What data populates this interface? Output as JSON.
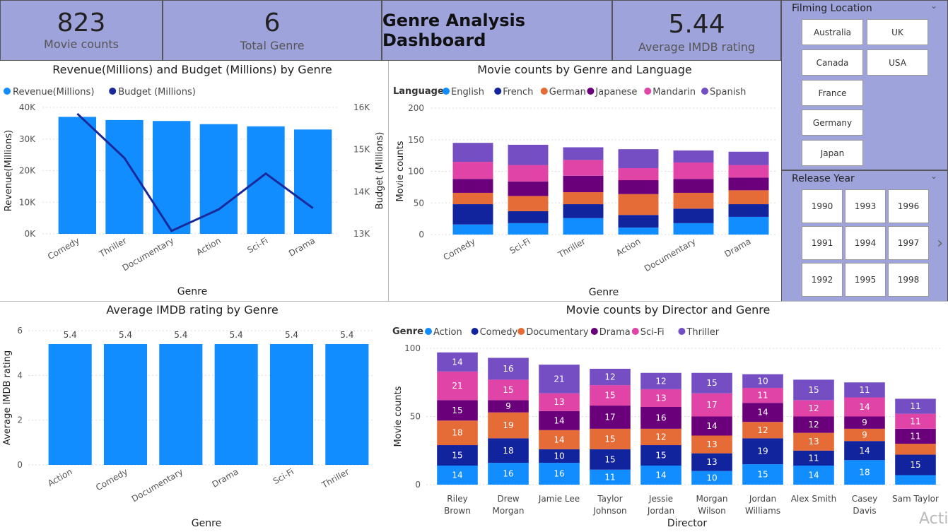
{
  "kpis": {
    "movie_counts": {
      "value": "823",
      "label": "Movie counts"
    },
    "total_genre": {
      "value": "6",
      "label": "Total Genre"
    },
    "dashboard_title": "Genre Analysis Dashboard",
    "avg_imdb": {
      "value": "5.44",
      "label": "Average IMDB rating"
    }
  },
  "slicers": {
    "filming_location": {
      "title": "Filming Location",
      "items": [
        "Australia",
        "UK",
        "Canada",
        "USA",
        "France",
        "Germany",
        "Japan"
      ]
    },
    "release_year": {
      "title": "Release Year",
      "items": [
        "1990",
        "1993",
        "1996",
        "1991",
        "1994",
        "1997",
        "1992",
        "1995",
        "1998"
      ]
    }
  },
  "watermark": "Acti",
  "colors": {
    "blue": "#118dff",
    "navy": "#12239e",
    "orange": "#e66c37",
    "purple": "#6b007b",
    "pink": "#e044a7",
    "violet": "#744ec2",
    "line": "#1a2a9a"
  },
  "chart_data": [
    {
      "id": "revenue_budget",
      "type": "bar",
      "title": "Revenue(Millions) and Budget (Millions) by Genre",
      "xlabel": "Genre",
      "ylabel": "Revenue(Millions)",
      "y2label": "Budget (Millions)",
      "categories": [
        "Comedy",
        "Thriller",
        "Documentary",
        "Action",
        "Sci-Fi",
        "Drama"
      ],
      "series": [
        {
          "name": "Revenue(Millions)",
          "values": [
            37000,
            36000,
            35700,
            34700,
            34000,
            33000
          ]
        },
        {
          "name": "Budget (Millions)",
          "values": [
            15850,
            14800,
            13070,
            13580,
            14430,
            13610
          ]
        }
      ],
      "ylim": [
        0,
        40000
      ],
      "y2lim": [
        13000,
        16000
      ],
      "yticks": [
        "0K",
        "10K",
        "20K",
        "30K",
        "40K"
      ],
      "y2ticks": [
        "13K",
        "14K",
        "15K",
        "16K"
      ],
      "legend": "top-left"
    },
    {
      "id": "genre_language",
      "type": "bar",
      "stacked": true,
      "title": "Movie counts by Genre and Language",
      "legend_title": "Language",
      "xlabel": "Genre",
      "ylabel": "Movie counts",
      "categories": [
        "Comedy",
        "Sci-Fi",
        "Thriller",
        "Action",
        "Documentary",
        "Drama"
      ],
      "series": [
        {
          "name": "English",
          "values": [
            16,
            18,
            26,
            11,
            18,
            28
          ]
        },
        {
          "name": "French",
          "values": [
            32,
            19,
            22,
            20,
            23,
            20
          ]
        },
        {
          "name": "German",
          "values": [
            18,
            24,
            19,
            33,
            25,
            22
          ]
        },
        {
          "name": "Japanese",
          "values": [
            22,
            23,
            26,
            22,
            22,
            20
          ]
        },
        {
          "name": "Mandarin",
          "values": [
            27,
            26,
            25,
            19,
            26,
            20
          ]
        },
        {
          "name": "Spanish",
          "values": [
            30,
            32,
            20,
            30,
            19,
            21
          ]
        }
      ],
      "ylim": [
        0,
        200
      ],
      "yticks": [
        "0",
        "50",
        "100",
        "150",
        "200"
      ],
      "legend": "top-left"
    },
    {
      "id": "imdb_by_genre",
      "type": "bar",
      "title": "Average IMDB rating by Genre",
      "xlabel": "Genre",
      "ylabel": "Average IMDB rating",
      "categories": [
        "Action",
        "Comedy",
        "Documentary",
        "Drama",
        "Sci-Fi",
        "Thriller"
      ],
      "values": [
        5.4,
        5.4,
        5.4,
        5.4,
        5.4,
        5.4
      ],
      "data_labels": [
        "5.4",
        "5.4",
        "5.4",
        "5.4",
        "5.4",
        "5.4"
      ],
      "ylim": [
        0,
        6
      ],
      "yticks": [
        "0",
        "2",
        "4",
        "6"
      ]
    },
    {
      "id": "director_genre",
      "type": "bar",
      "stacked": true,
      "title": "Movie counts by Director and Genre",
      "legend_title": "Genre",
      "xlabel": "Director",
      "ylabel": "Movie counts",
      "categories": [
        "Riley Brown",
        "Drew Morgan",
        "Jamie Lee",
        "Taylor Johnson",
        "Jessie Jordan",
        "Morgan Wilson",
        "Jordan Williams",
        "Alex Smith",
        "Casey Davis",
        "Sam Taylor"
      ],
      "series": [
        {
          "name": "Action",
          "values": [
            14,
            16,
            16,
            11,
            14,
            10,
            15,
            14,
            18,
            7
          ]
        },
        {
          "name": "Comedy",
          "values": [
            15,
            18,
            10,
            15,
            15,
            13,
            19,
            11,
            14,
            15
          ]
        },
        {
          "name": "Documentary",
          "values": [
            18,
            19,
            14,
            15,
            12,
            13,
            12,
            13,
            9,
            8
          ]
        },
        {
          "name": "Drama",
          "values": [
            15,
            9,
            14,
            17,
            16,
            14,
            14,
            12,
            9,
            11
          ]
        },
        {
          "name": "Sci-Fi",
          "values": [
            21,
            15,
            13,
            15,
            13,
            17,
            11,
            12,
            14,
            11
          ]
        },
        {
          "name": "Thriller",
          "values": [
            14,
            16,
            21,
            12,
            12,
            15,
            10,
            15,
            11,
            11
          ]
        }
      ],
      "ylim": [
        0,
        100
      ],
      "yticks": [
        "0",
        "50",
        "100"
      ],
      "legend": "top-left"
    }
  ]
}
